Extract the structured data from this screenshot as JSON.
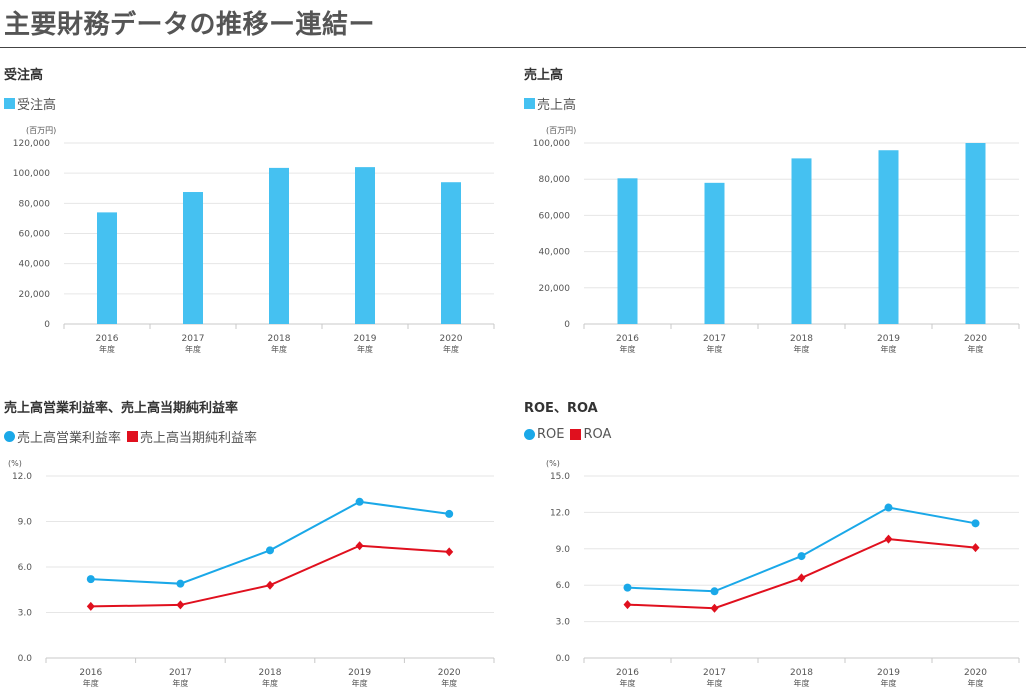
{
  "page": {
    "title": "主要財務データの推移ー連結ー"
  },
  "colors": {
    "blue": "#45C1F1",
    "red": "#E0101E",
    "grid": "#E6E6E6",
    "axis": "#C8C8C8"
  },
  "chart_data": [
    {
      "type": "bar",
      "title": "受注高",
      "series": [
        {
          "name": "受注高",
          "values": [
            74000,
            87500,
            103500,
            104000,
            94000
          ],
          "color": "#45C1F1"
        }
      ],
      "categories": [
        "2016",
        "2017",
        "2018",
        "2019",
        "2020"
      ],
      "category_sublabel": "年度",
      "ylabel": "(百万円)",
      "ylim": [
        0,
        120000
      ],
      "yticks": [
        0,
        20000,
        40000,
        60000,
        80000,
        100000,
        120000
      ],
      "ytick_labels": [
        "0",
        "20,000",
        "40,000",
        "60,000",
        "80,000",
        "100,000",
        "120,000"
      ],
      "grid": true,
      "legend": "top-left"
    },
    {
      "type": "bar",
      "title": "売上高",
      "series": [
        {
          "name": "売上高",
          "values": [
            80500,
            78000,
            91500,
            96000,
            100000
          ],
          "color": "#45C1F1"
        }
      ],
      "categories": [
        "2016",
        "2017",
        "2018",
        "2019",
        "2020"
      ],
      "category_sublabel": "年度",
      "ylabel": "(百万円)",
      "ylim": [
        0,
        100000
      ],
      "yticks": [
        0,
        20000,
        40000,
        60000,
        80000,
        100000
      ],
      "ytick_labels": [
        "0",
        "20,000",
        "40,000",
        "60,000",
        "80,000",
        "100,000"
      ],
      "grid": true,
      "legend": "top-left"
    },
    {
      "type": "line",
      "title": "売上高営業利益率、売上高当期純利益率",
      "series": [
        {
          "name": "売上高営業利益率",
          "values": [
            5.2,
            4.9,
            7.1,
            10.3,
            9.5
          ],
          "color": "#1AA8E8",
          "marker": "circle"
        },
        {
          "name": "売上高当期純利益率",
          "values": [
            3.4,
            3.5,
            4.8,
            7.4,
            7.0
          ],
          "color": "#E0101E",
          "marker": "diamond"
        }
      ],
      "categories": [
        "2016",
        "2017",
        "2018",
        "2019",
        "2020"
      ],
      "category_sublabel": "年度",
      "ylabel": "(%)",
      "ylim": [
        0,
        12
      ],
      "yticks": [
        0,
        3,
        6,
        9,
        12
      ],
      "ytick_labels": [
        "0.0",
        "3.0",
        "6.0",
        "9.0",
        "12.0"
      ],
      "grid": true,
      "legend": "top-left"
    },
    {
      "type": "line",
      "title": "ROE、ROA",
      "series": [
        {
          "name": "ROE",
          "values": [
            5.8,
            5.5,
            8.4,
            12.4,
            11.1
          ],
          "color": "#1AA8E8",
          "marker": "circle"
        },
        {
          "name": "ROA",
          "values": [
            4.4,
            4.1,
            6.6,
            9.8,
            9.1
          ],
          "color": "#E0101E",
          "marker": "diamond"
        }
      ],
      "categories": [
        "2016",
        "2017",
        "2018",
        "2019",
        "2020"
      ],
      "category_sublabel": "年度",
      "ylabel": "(%)",
      "ylim": [
        0,
        15
      ],
      "yticks": [
        0,
        3,
        6,
        9,
        12,
        15
      ],
      "ytick_labels": [
        "0.0",
        "3.0",
        "6.0",
        "9.0",
        "12.0",
        "15.0"
      ],
      "grid": true,
      "legend": "top-left"
    }
  ]
}
